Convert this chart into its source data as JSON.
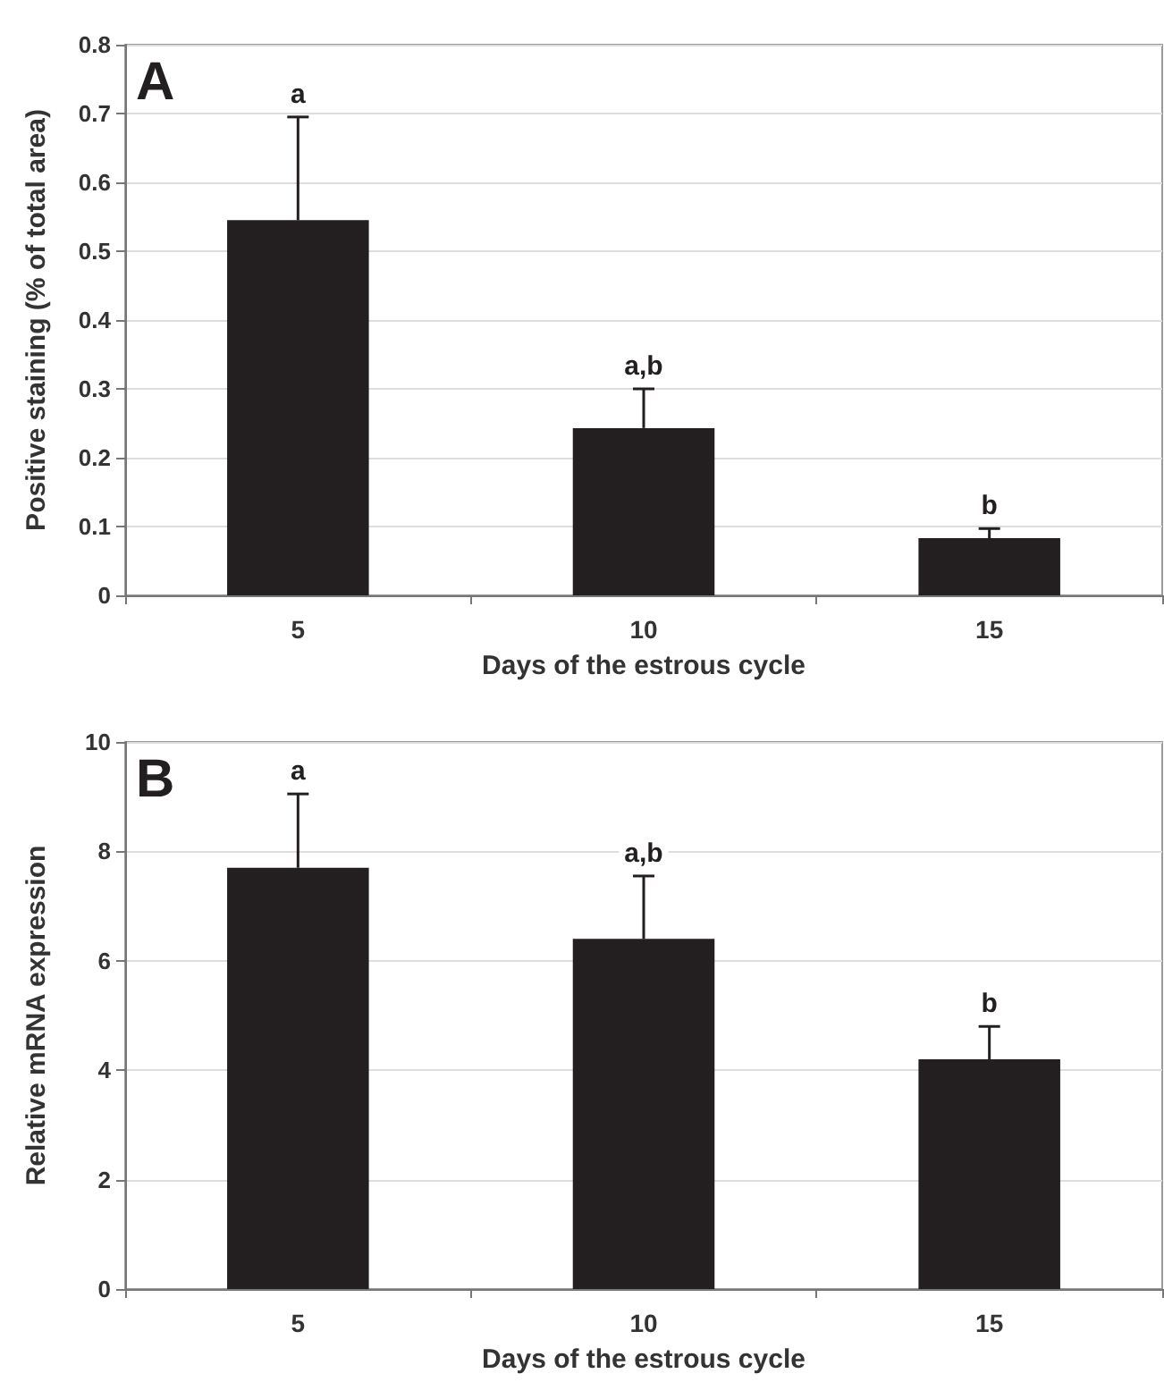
{
  "chart_data": [
    {
      "type": "bar",
      "xlabel": "Days of the estrous cycle",
      "ylabel": "Positive staining (% of total area)",
      "categories": [
        "5",
        "10",
        "15"
      ],
      "series": [
        {
          "color": "#231f20",
          "values": [
            0.545,
            0.243,
            0.083
          ],
          "errors": [
            [
              0.545,
              0.695
            ],
            [
              0.243,
              0.3
            ],
            [
              0.083,
              0.097
            ]
          ]
        }
      ],
      "ylim": [
        0,
        0.8
      ],
      "yticks": [
        0,
        0.1,
        0.2,
        0.3,
        0.4,
        0.5,
        0.6,
        0.7,
        0.8
      ],
      "grid": "y",
      "annotations": [
        "A",
        "a",
        "a,b",
        "b"
      ]
    },
    {
      "type": "bar",
      "xlabel": "Days of the estrous cycle",
      "ylabel": "Relative mRNA expression",
      "categories": [
        "5",
        "10",
        "15"
      ],
      "series": [
        {
          "color": "#231f20",
          "values": [
            7.7,
            6.4,
            4.2
          ],
          "errors": [
            [
              7.7,
              9.05
            ],
            [
              6.4,
              7.55
            ],
            [
              4.2,
              4.8
            ]
          ]
        }
      ],
      "ylim": [
        0,
        10
      ],
      "yticks": [
        0,
        2,
        4,
        6,
        8,
        10
      ],
      "grid": "y",
      "annotations": [
        "B",
        "a",
        "a,b",
        "b"
      ]
    }
  ]
}
